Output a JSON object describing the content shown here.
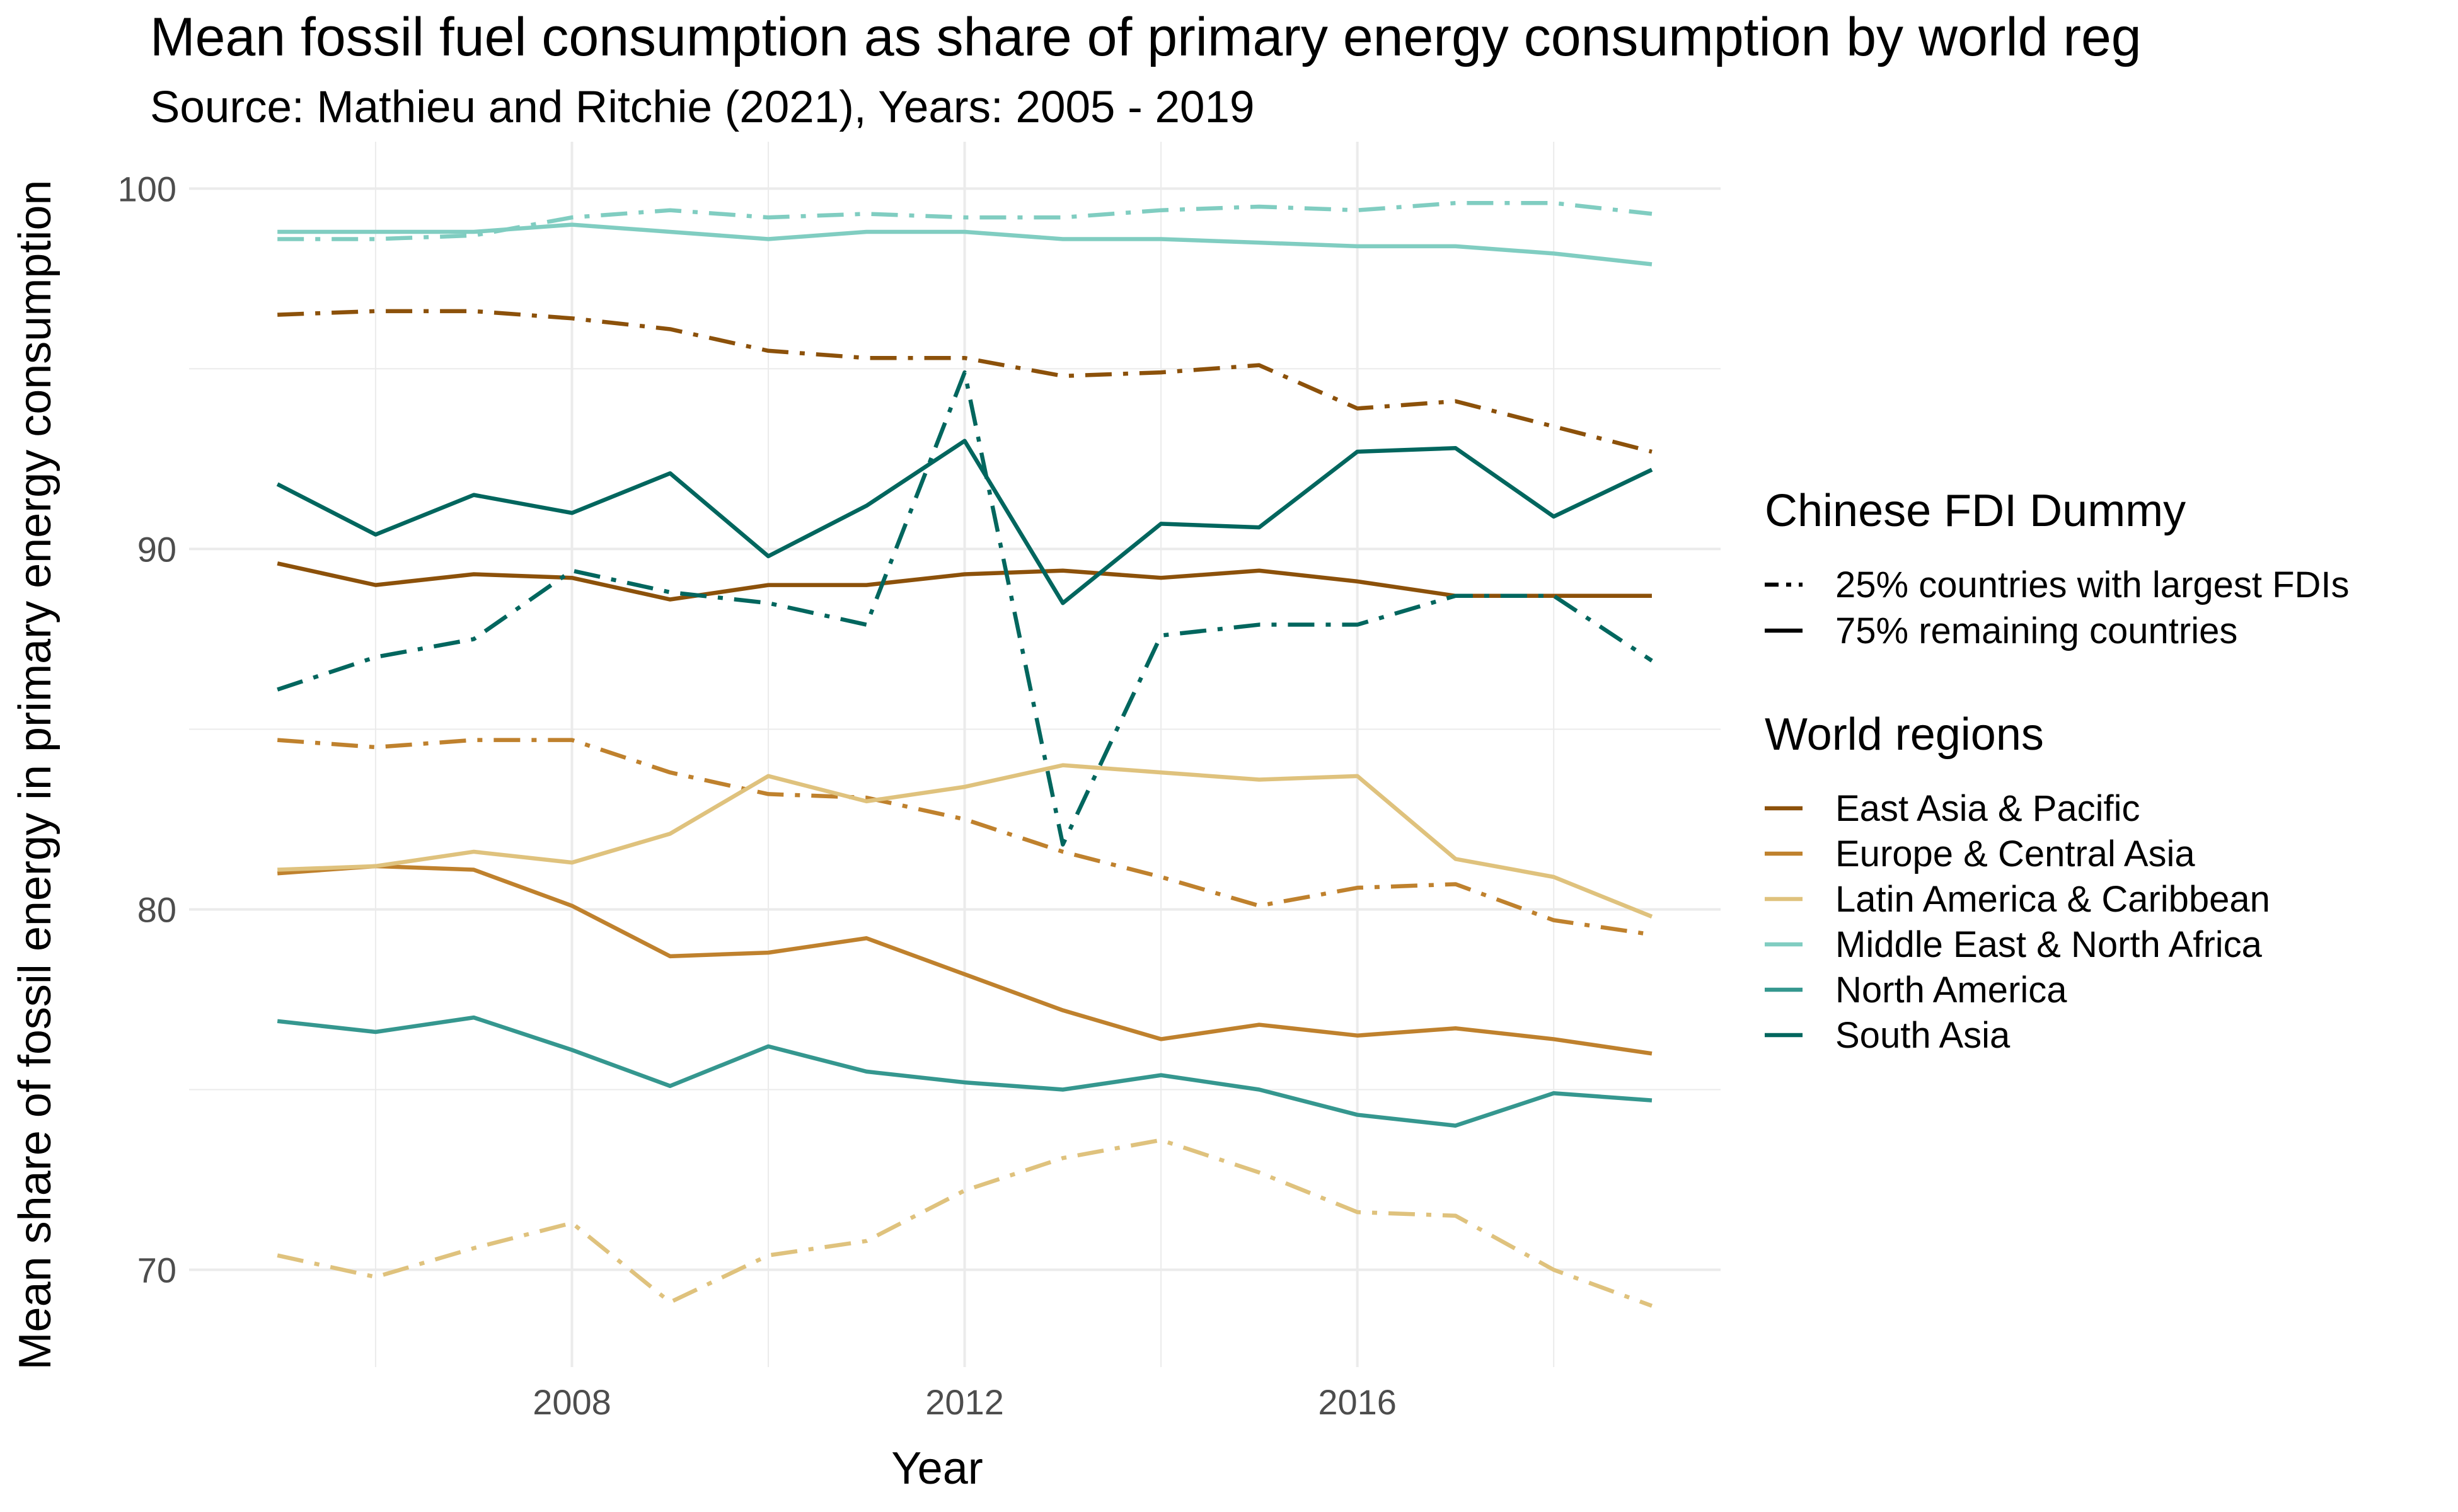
{
  "chart_data": {
    "type": "line",
    "title": "Mean fossil fuel consumption as share of primary energy consumption by world reg",
    "subtitle": "Source: Mathieu and Ritchie (2021), Years: 2005 - 2019",
    "xlabel": "Year",
    "ylabel": "Mean share of fossil energy in primary energy consumption",
    "x": [
      2005,
      2006,
      2007,
      2008,
      2009,
      2010,
      2011,
      2012,
      2013,
      2014,
      2015,
      2016,
      2017,
      2018,
      2019
    ],
    "xlim": [
      2004.1,
      2019.7
    ],
    "ylim": [
      67.3,
      101.3
    ],
    "xticks": [
      2008,
      2012,
      2016
    ],
    "yticks": [
      70,
      80,
      90,
      100
    ],
    "grid": true,
    "legend": {
      "placement": "right",
      "linetype_title": "Chinese FDI Dummy",
      "linetypes": [
        "25% countries with largest FDIs",
        "75% remaining countries"
      ],
      "color_title": "World regions",
      "regions": [
        {
          "name": "East Asia & Pacific",
          "color": "#8c510a"
        },
        {
          "name": "Europe & Central Asia",
          "color": "#bf812d"
        },
        {
          "name": "Latin America & Caribbean",
          "color": "#dfc27d"
        },
        {
          "name": "Middle East & North Africa",
          "color": "#80cdc1"
        },
        {
          "name": "North America",
          "color": "#35978f"
        },
        {
          "name": "South Asia",
          "color": "#01665e"
        }
      ]
    },
    "series": [
      {
        "region": "East Asia & Pacific",
        "fdi": "75% remaining countries",
        "values": [
          89.6,
          89.0,
          89.3,
          89.2,
          88.6,
          89.0,
          89.0,
          89.3,
          89.4,
          89.2,
          89.4,
          89.1,
          88.7,
          88.7,
          88.7
        ]
      },
      {
        "region": "East Asia & Pacific",
        "fdi": "25% countries with largest FDIs",
        "values": [
          96.5,
          96.6,
          96.6,
          96.4,
          96.1,
          95.5,
          95.3,
          95.3,
          94.8,
          94.9,
          95.1,
          93.9,
          94.1,
          93.4,
          92.7
        ]
      },
      {
        "region": "Europe & Central Asia",
        "fdi": "75% remaining countries",
        "values": [
          81.0,
          81.2,
          81.1,
          80.1,
          78.7,
          78.8,
          79.2,
          78.2,
          77.2,
          76.4,
          76.8,
          76.5,
          76.7,
          76.4,
          76.0
        ]
      },
      {
        "region": "Europe & Central Asia",
        "fdi": "25% countries with largest FDIs",
        "values": [
          84.7,
          84.5,
          84.7,
          84.7,
          83.8,
          83.2,
          83.1,
          82.5,
          81.6,
          80.9,
          80.1,
          80.6,
          80.7,
          79.7,
          79.3
        ]
      },
      {
        "region": "Latin America & Caribbean",
        "fdi": "75% remaining countries",
        "values": [
          81.1,
          81.2,
          81.6,
          81.3,
          82.1,
          83.7,
          83.0,
          83.4,
          84.0,
          83.8,
          83.6,
          83.7,
          81.4,
          80.9,
          79.8
        ]
      },
      {
        "region": "Latin America & Caribbean",
        "fdi": "25% countries with largest FDIs",
        "values": [
          70.4,
          69.8,
          70.6,
          71.3,
          69.1,
          70.4,
          70.8,
          72.2,
          73.1,
          73.6,
          72.7,
          71.6,
          71.5,
          70.0,
          69.0
        ]
      },
      {
        "region": "Middle East & North Africa",
        "fdi": "75% remaining countries",
        "values": [
          98.8,
          98.8,
          98.8,
          99.0,
          98.8,
          98.6,
          98.8,
          98.8,
          98.6,
          98.6,
          98.5,
          98.4,
          98.4,
          98.2,
          97.9
        ]
      },
      {
        "region": "Middle East & North Africa",
        "fdi": "25% countries with largest FDIs",
        "values": [
          98.6,
          98.6,
          98.7,
          99.2,
          99.4,
          99.2,
          99.3,
          99.2,
          99.2,
          99.4,
          99.5,
          99.4,
          99.6,
          99.6,
          99.3
        ]
      },
      {
        "region": "North America",
        "fdi": "75% remaining countries",
        "values": [
          76.9,
          76.6,
          77.0,
          76.1,
          75.1,
          76.2,
          75.5,
          75.2,
          75.0,
          75.4,
          75.0,
          74.3,
          74.0,
          74.9,
          74.7
        ]
      },
      {
        "region": "South Asia",
        "fdi": "75% remaining countries",
        "values": [
          91.8,
          90.4,
          91.5,
          91.0,
          92.1,
          89.8,
          91.2,
          93.0,
          88.5,
          90.7,
          90.6,
          92.7,
          92.8,
          90.9,
          92.2
        ]
      },
      {
        "region": "South Asia",
        "fdi": "25% countries with largest FDIs",
        "values": [
          86.1,
          87.0,
          87.5,
          89.4,
          88.8,
          88.5,
          87.9,
          94.9,
          81.8,
          87.6,
          87.9,
          87.9,
          88.7,
          88.7,
          86.9
        ]
      }
    ]
  }
}
